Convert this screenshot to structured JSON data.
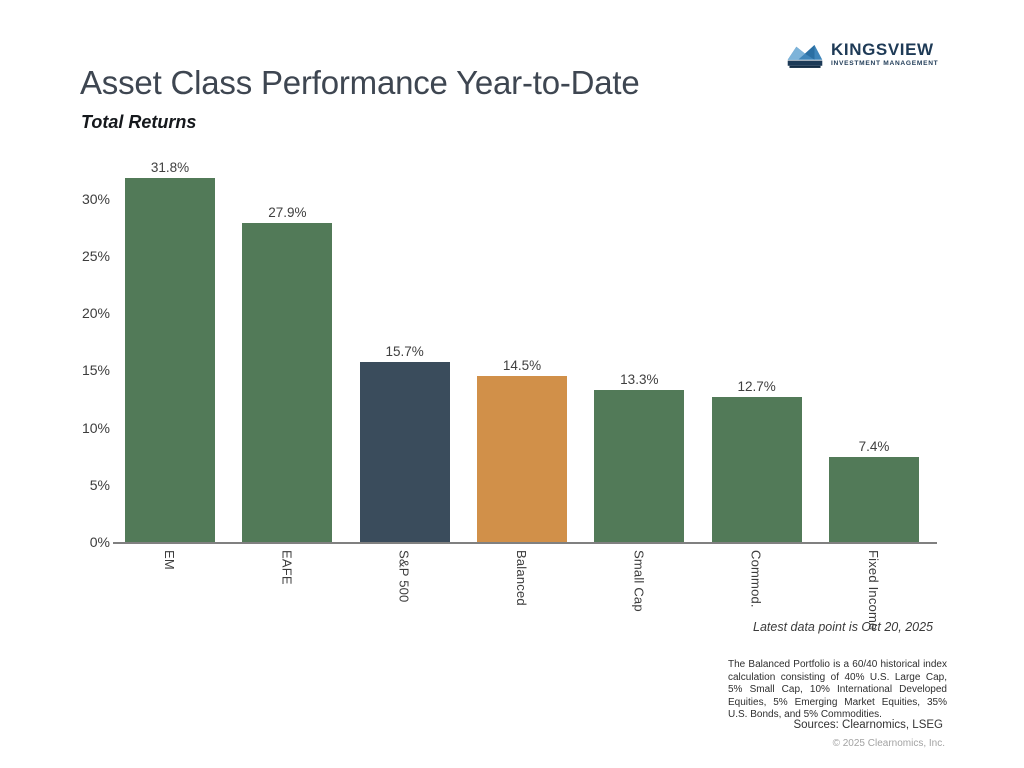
{
  "header": {
    "title": "Asset Class Performance Year-to-Date",
    "subtitle": "Total Returns",
    "logo": {
      "name": "KINGSVIEW",
      "tagline": "INVESTMENT MANAGEMENT",
      "icon": "crown-icon"
    }
  },
  "chart_data": {
    "type": "bar",
    "title": "Asset Class Performance Year-to-Date",
    "subtitle": "Total Returns",
    "categories": [
      "EM",
      "EAFE",
      "S&P 500",
      "Balanced",
      "Small Cap",
      "Commod.",
      "Fixed Income"
    ],
    "values": [
      31.8,
      27.9,
      15.7,
      14.5,
      13.3,
      12.7,
      7.4
    ],
    "value_labels": [
      "31.8%",
      "27.9%",
      "15.7%",
      "14.5%",
      "13.3%",
      "12.7%",
      "7.4%"
    ],
    "bar_colors": [
      "#527a58",
      "#527a58",
      "#3a4c5c",
      "#d19049",
      "#527a58",
      "#527a58",
      "#527a58"
    ],
    "y_ticks": [
      0,
      5,
      10,
      15,
      20,
      25,
      30
    ],
    "y_tick_labels": [
      "0%",
      "5%",
      "10%",
      "15%",
      "20%",
      "25%",
      "30%"
    ],
    "ylim": [
      0,
      32.5
    ],
    "xlabel": "",
    "ylabel": "",
    "grid": false,
    "legend": "none"
  },
  "colors": {
    "green": "#527a58",
    "navy": "#3a4c5c",
    "orange": "#d19049",
    "axis": "#808080",
    "title": "#3e4651"
  },
  "footer": {
    "latest_note": "Latest data point is Oct 20, 2025",
    "disclaimer": "The Balanced Portfolio is a 60/40 historical index calculation consisting of 40% U.S. Large Cap, 5% Small Cap, 10% International Developed Equities, 5% Emerging Market Equities, 35% U.S. Bonds, and 5% Commodities.",
    "sources": "Sources: Clearnomics, LSEG",
    "copyright": "© 2025 Clearnomics, Inc."
  }
}
